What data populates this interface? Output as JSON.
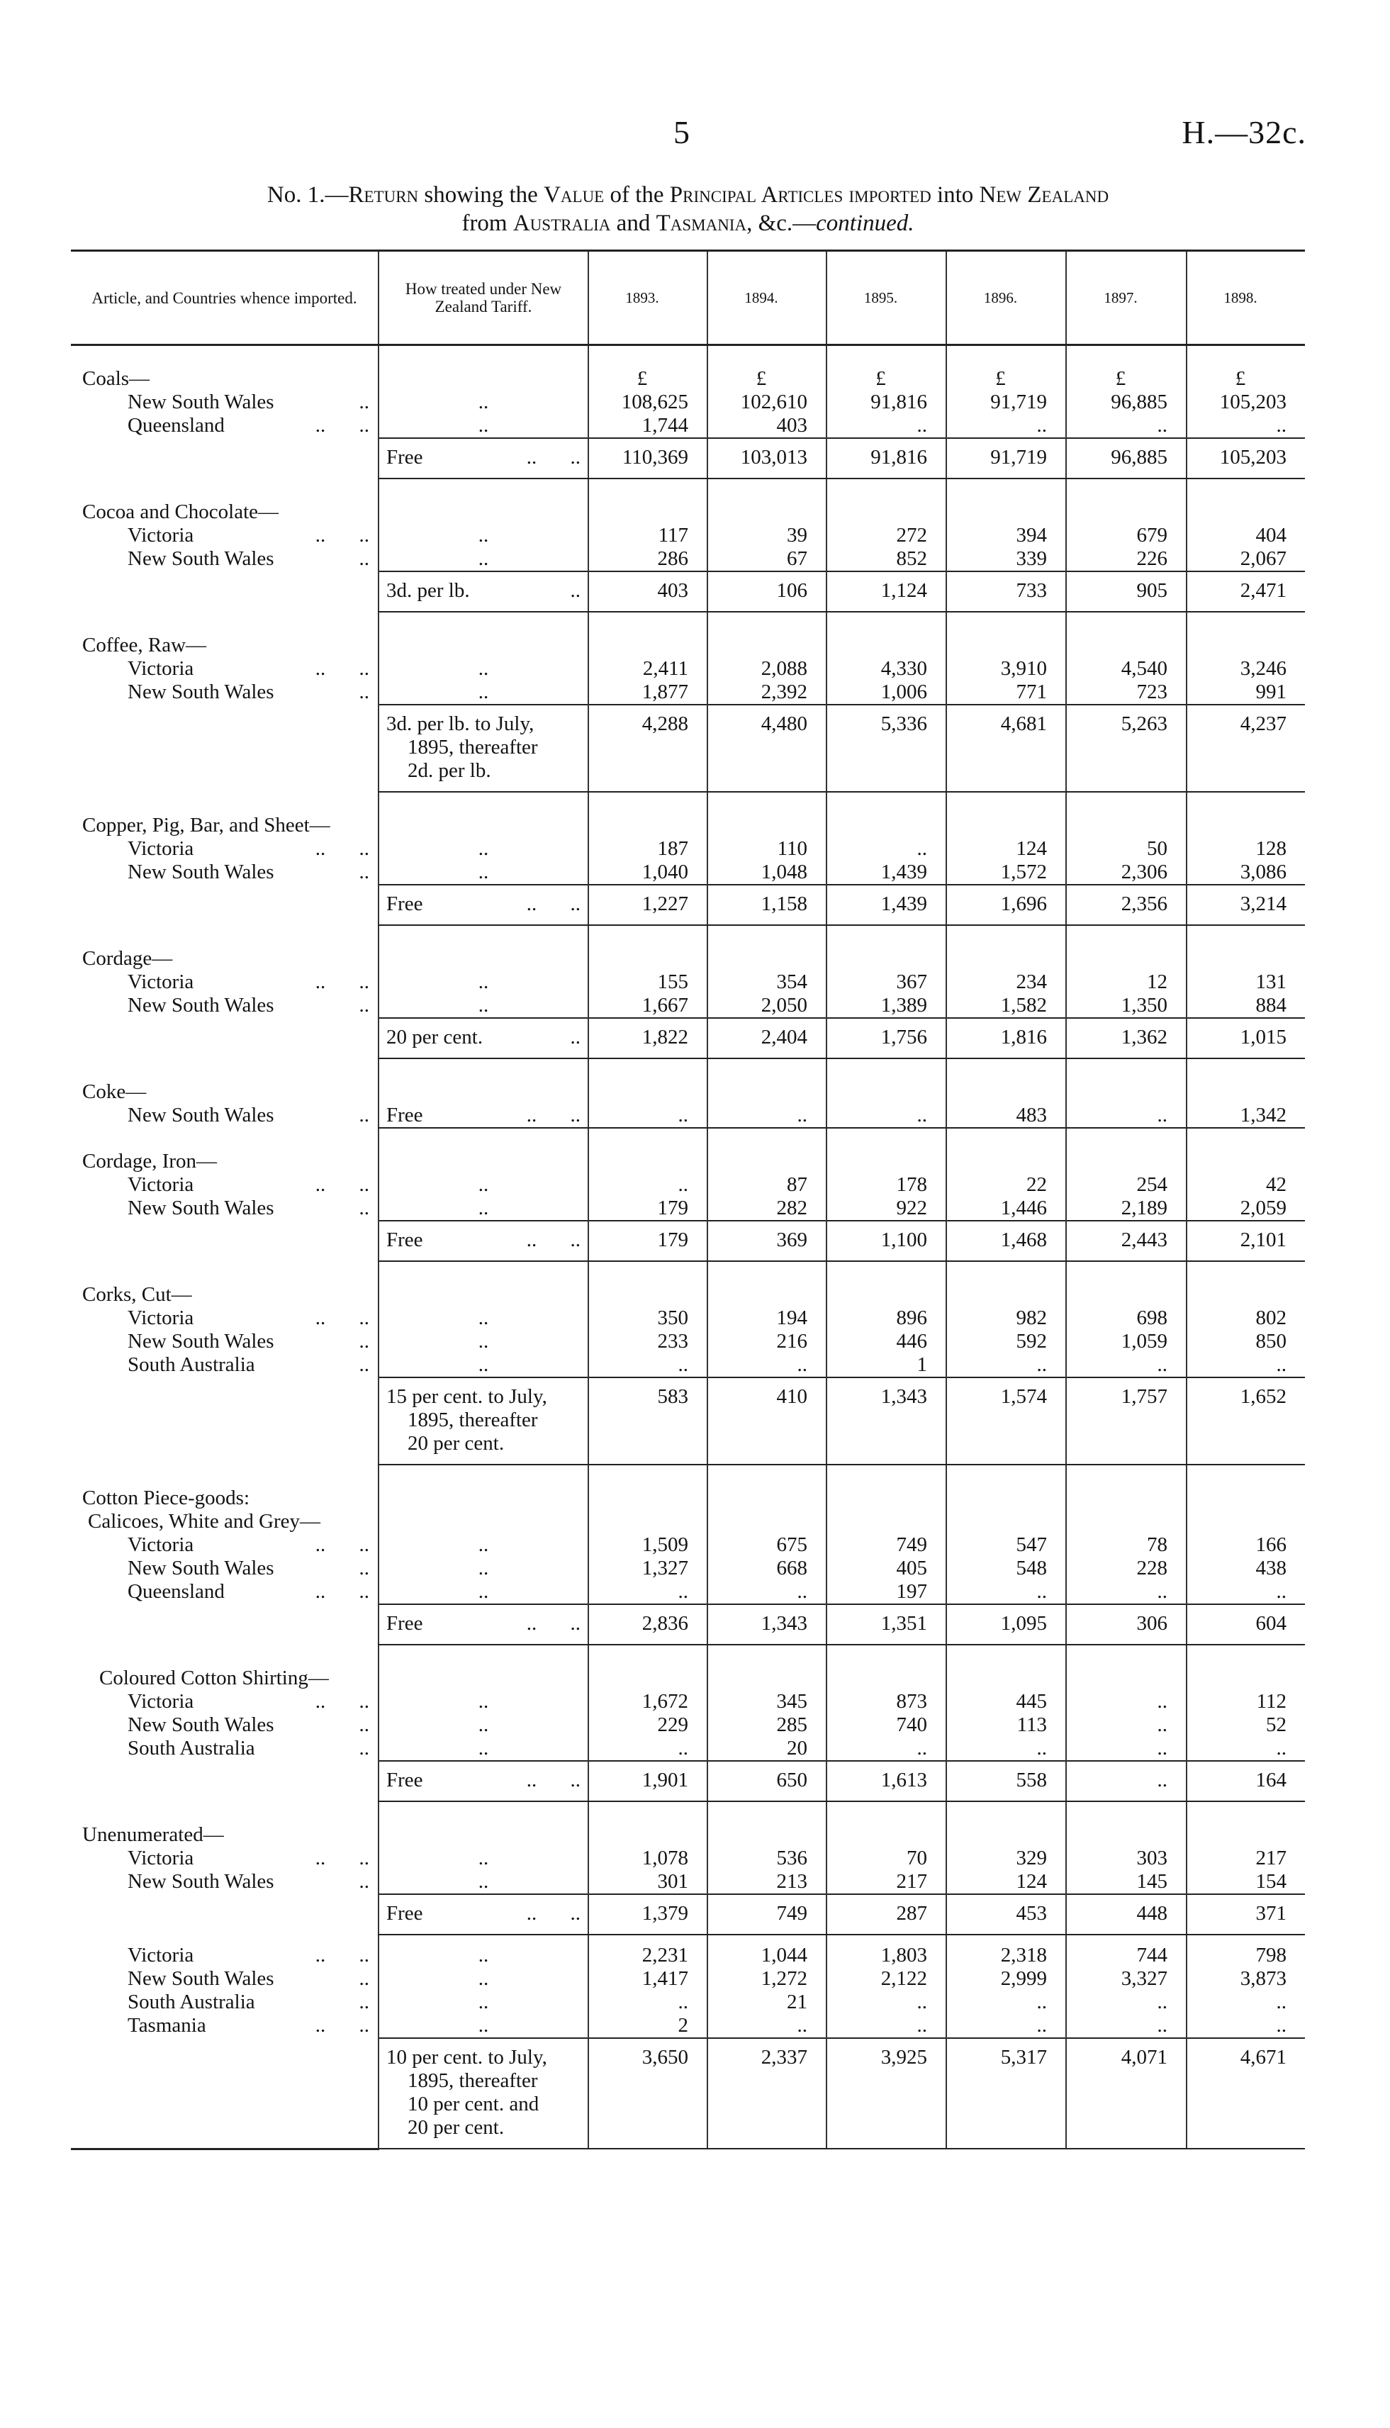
{
  "page_number": "5",
  "document_ref": "H.—32c.",
  "title": {
    "line1": [
      {
        "t": "No. 1.—",
        "s": ""
      },
      {
        "t": "Return",
        "s": "sc"
      },
      {
        "t": " showing the ",
        "s": ""
      },
      {
        "t": "Value",
        "s": "sc"
      },
      {
        "t": " of the ",
        "s": ""
      },
      {
        "t": "Principal Articles imported",
        "s": "sc"
      },
      {
        "t": " into ",
        "s": ""
      },
      {
        "t": "New Zealand",
        "s": "sc"
      }
    ],
    "line2": [
      {
        "t": "from ",
        "s": ""
      },
      {
        "t": "Australia",
        "s": "sc"
      },
      {
        "t": " and ",
        "s": ""
      },
      {
        "t": "Tasmania",
        "s": "sc"
      },
      {
        "t": ", &c.—",
        "s": ""
      },
      {
        "t": "continued.",
        "s": "it"
      }
    ]
  },
  "columns": {
    "article": "Article, and Countries whence imported.",
    "tariff": "How treated under New Zealand Tariff.",
    "years": [
      "1893.",
      "1894.",
      "1895.",
      "1896.",
      "1897.",
      "1898."
    ]
  },
  "currency_symbol": "£",
  "groups": [
    {
      "heading": [
        "Coals—"
      ],
      "rows": [
        {
          "country": "New South Wales",
          "leader": "..",
          "tariff": "..",
          "values": [
            "108,625",
            "102,610",
            "91,816",
            "91,719",
            "96,885",
            "105,203"
          ]
        },
        {
          "country": "Queensland",
          "leader": ".. ..",
          "tariff": "..",
          "values": [
            "1,744",
            "403",
            "..",
            "..",
            "..",
            ".."
          ]
        }
      ],
      "total": {
        "tariff": [
          "Free"
        ],
        "leader": ".. ..",
        "values": [
          "110,369",
          "103,013",
          "91,816",
          "91,719",
          "96,885",
          "105,203"
        ]
      }
    },
    {
      "heading": [
        "Cocoa and Chocolate—"
      ],
      "rows": [
        {
          "country": "Victoria",
          "leader": ".. ..",
          "tariff": "..",
          "values": [
            "117",
            "39",
            "272",
            "394",
            "679",
            "404"
          ]
        },
        {
          "country": "New South Wales",
          "leader": "..",
          "tariff": "..",
          "values": [
            "286",
            "67",
            "852",
            "339",
            "226",
            "2,067"
          ]
        }
      ],
      "total": {
        "tariff": [
          "3d. per lb."
        ],
        "leader": "..",
        "values": [
          "403",
          "106",
          "1,124",
          "733",
          "905",
          "2,471"
        ]
      }
    },
    {
      "heading": [
        "Coffee, Raw—"
      ],
      "rows": [
        {
          "country": "Victoria",
          "leader": ".. ..",
          "tariff": "..",
          "values": [
            "2,411",
            "2,088",
            "4,330",
            "3,910",
            "4,540",
            "3,246"
          ]
        },
        {
          "country": "New South Wales",
          "leader": "..",
          "tariff": "..",
          "values": [
            "1,877",
            "2,392",
            "1,006",
            "771",
            "723",
            "991"
          ]
        }
      ],
      "total": {
        "tariff": [
          "3d. per lb. to July,",
          "1895, thereafter",
          "2d. per lb."
        ],
        "leader": "",
        "values": [
          "4,288",
          "4,480",
          "5,336",
          "4,681",
          "5,263",
          "4,237"
        ]
      }
    },
    {
      "heading": [
        "Copper, Pig, Bar, and Sheet—"
      ],
      "rows": [
        {
          "country": "Victoria",
          "leader": ".. ..",
          "tariff": "..",
          "values": [
            "187",
            "110",
            "..",
            "124",
            "50",
            "128"
          ]
        },
        {
          "country": "New South Wales",
          "leader": "..",
          "tariff": "..",
          "values": [
            "1,040",
            "1,048",
            "1,439",
            "1,572",
            "2,306",
            "3,086"
          ]
        }
      ],
      "total": {
        "tariff": [
          "Free"
        ],
        "leader": ".. ..",
        "values": [
          "1,227",
          "1,158",
          "1,439",
          "1,696",
          "2,356",
          "3,214"
        ]
      }
    },
    {
      "heading": [
        "Cordage—"
      ],
      "rows": [
        {
          "country": "Victoria",
          "leader": ".. ..",
          "tariff": "..",
          "values": [
            "155",
            "354",
            "367",
            "234",
            "12",
            "131"
          ]
        },
        {
          "country": "New South Wales",
          "leader": "..",
          "tariff": "..",
          "values": [
            "1,667",
            "2,050",
            "1,389",
            "1,582",
            "1,350",
            "884"
          ]
        }
      ],
      "total": {
        "tariff": [
          "20 per cent."
        ],
        "leader": "..",
        "values": [
          "1,822",
          "2,404",
          "1,756",
          "1,816",
          "1,362",
          "1,015"
        ]
      }
    },
    {
      "heading": [
        "Coke—"
      ],
      "rows": [
        {
          "country": "New South Wales",
          "leader": "..",
          "tariff": "Free",
          "tariff_leader": ".. ..",
          "values": [
            "..",
            "..",
            "..",
            "483",
            "..",
            "1,342"
          ]
        }
      ],
      "total": null
    },
    {
      "heading": [
        "Cordage, Iron—"
      ],
      "rows": [
        {
          "country": "Victoria",
          "leader": ".. ..",
          "tariff": "..",
          "values": [
            "..",
            "87",
            "178",
            "22",
            "254",
            "42"
          ]
        },
        {
          "country": "New South Wales",
          "leader": "..",
          "tariff": "..",
          "values": [
            "179",
            "282",
            "922",
            "1,446",
            "2,189",
            "2,059"
          ]
        }
      ],
      "total": {
        "tariff": [
          "Free"
        ],
        "leader": ".. ..",
        "values": [
          "179",
          "369",
          "1,100",
          "1,468",
          "2,443",
          "2,101"
        ]
      }
    },
    {
      "heading": [
        "Corks, Cut—"
      ],
      "rows": [
        {
          "country": "Victoria",
          "leader": ".. ..",
          "tariff": "..",
          "values": [
            "350",
            "194",
            "896",
            "982",
            "698",
            "802"
          ]
        },
        {
          "country": "New South Wales",
          "leader": "..",
          "tariff": "..",
          "values": [
            "233",
            "216",
            "446",
            "592",
            "1,059",
            "850"
          ]
        },
        {
          "country": "South Australia",
          "leader": "..",
          "tariff": "..",
          "values": [
            "..",
            "..",
            "1",
            "..",
            "..",
            ".."
          ]
        }
      ],
      "total": {
        "tariff": [
          "15 per cent. to July,",
          "1895, thereafter",
          "20 per cent."
        ],
        "leader": "",
        "values": [
          "583",
          "410",
          "1,343",
          "1,574",
          "1,757",
          "1,652"
        ]
      }
    },
    {
      "heading": [
        "Cotton Piece-goods:",
        "Calicoes, White and Grey—"
      ],
      "rows": [
        {
          "country": "Victoria",
          "leader": ".. ..",
          "tariff": "..",
          "values": [
            "1,509",
            "675",
            "749",
            "547",
            "78",
            "166"
          ]
        },
        {
          "country": "New South Wales",
          "leader": "..",
          "tariff": "..",
          "values": [
            "1,327",
            "668",
            "405",
            "548",
            "228",
            "438"
          ]
        },
        {
          "country": "Queensland",
          "leader": ".. ..",
          "tariff": "..",
          "values": [
            "..",
            "..",
            "197",
            "..",
            "..",
            ".."
          ]
        }
      ],
      "total": {
        "tariff": [
          "Free"
        ],
        "leader": ".. ..",
        "values": [
          "2,836",
          "1,343",
          "1,351",
          "1,095",
          "306",
          "604"
        ]
      }
    },
    {
      "heading": [
        "Coloured Cotton Shirting—"
      ],
      "indent": 2,
      "rows": [
        {
          "country": "Victoria",
          "leader": ".. ..",
          "tariff": "..",
          "values": [
            "1,672",
            "345",
            "873",
            "445",
            "..",
            "112"
          ]
        },
        {
          "country": "New South Wales",
          "leader": "..",
          "tariff": "..",
          "values": [
            "229",
            "285",
            "740",
            "113",
            "..",
            "52"
          ]
        },
        {
          "country": "South Australia",
          "leader": "..",
          "tariff": "..",
          "values": [
            "..",
            "20",
            "..",
            "..",
            "..",
            ".."
          ]
        }
      ],
      "total": {
        "tariff": [
          "Free"
        ],
        "leader": ".. ..",
        "values": [
          "1,901",
          "650",
          "1,613",
          "558",
          "..",
          "164"
        ]
      }
    },
    {
      "heading": [
        "Unenumerated—"
      ],
      "rows": [
        {
          "country": "Victoria",
          "leader": ".. ..",
          "tariff": "..",
          "values": [
            "1,078",
            "536",
            "70",
            "329",
            "303",
            "217"
          ]
        },
        {
          "country": "New South Wales",
          "leader": "..",
          "tariff": "..",
          "values": [
            "301",
            "213",
            "217",
            "124",
            "145",
            "154"
          ]
        }
      ],
      "total": {
        "tariff": [
          "Free"
        ],
        "leader": ".. ..",
        "values": [
          "1,379",
          "749",
          "287",
          "453",
          "448",
          "371"
        ]
      }
    },
    {
      "heading": [],
      "rows": [
        {
          "country": "Victoria",
          "leader": ".. ..",
          "tariff": "..",
          "values": [
            "2,231",
            "1,044",
            "1,803",
            "2,318",
            "744",
            "798"
          ]
        },
        {
          "country": "New South Wales",
          "leader": "..",
          "tariff": "..",
          "values": [
            "1,417",
            "1,272",
            "2,122",
            "2,999",
            "3,327",
            "3,873"
          ]
        },
        {
          "country": "South Australia",
          "leader": "..",
          "tariff": "..",
          "values": [
            "..",
            "21",
            "..",
            "..",
            "..",
            ".."
          ]
        },
        {
          "country": "Tasmania",
          "leader": ".. ..",
          "tariff": "..",
          "values": [
            "2",
            "..",
            "..",
            "..",
            "..",
            ".."
          ]
        }
      ],
      "total": {
        "tariff": [
          "10 per cent. to July,",
          "1895, thereafter",
          "10 per cent. and",
          "20 per cent."
        ],
        "leader": "",
        "values": [
          "3,650",
          "2,337",
          "3,925",
          "5,317",
          "4,071",
          "4,671"
        ]
      }
    }
  ]
}
